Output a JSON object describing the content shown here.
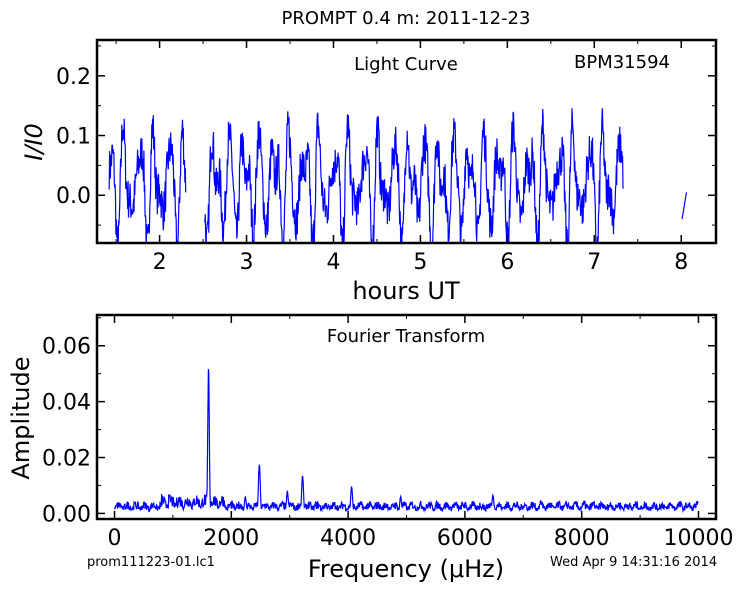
{
  "figure": {
    "title": "PROMPT 0.4 m:  2011-12-23",
    "footer_left": "prom111223-01.lc1",
    "footer_right": "Wed Apr  9 14:31:16 2014"
  },
  "chart_data": [
    {
      "type": "line",
      "title": "Light Curve",
      "annotation": "BPM31594",
      "xlabel": "hours UT",
      "ylabel": "I/I0",
      "xlim": [
        1.28,
        8.4
      ],
      "ylim": [
        -0.08,
        0.26
      ],
      "xticks": [
        2,
        3,
        4,
        5,
        6,
        7,
        8
      ],
      "yticks": [
        0.0,
        0.1,
        0.2
      ],
      "ytick_labels": [
        "0.0",
        "0.1",
        "0.2"
      ],
      "color": "#0000ff",
      "grid": false,
      "segments": [
        {
          "x_range": [
            1.42,
            2.3
          ],
          "y_range": [
            -0.08,
            0.12
          ]
        },
        {
          "x_range": [
            2.52,
            7.33
          ],
          "y_range": [
            -0.08,
            0.14
          ]
        },
        {
          "x_range": [
            8.01,
            8.06
          ],
          "y_range": [
            -0.04,
            0.005
          ]
        }
      ]
    },
    {
      "type": "line",
      "title": "Fourier Transform",
      "xlabel": "Frequency (μHz)",
      "ylabel": "Amplitude",
      "xlim": [
        -300,
        10300
      ],
      "ylim": [
        -0.002,
        0.071
      ],
      "xticks": [
        0,
        2000,
        4000,
        6000,
        8000,
        10000
      ],
      "yticks": [
        0.0,
        0.02,
        0.04,
        0.06
      ],
      "ytick_labels": [
        "0.00",
        "0.02",
        "0.04",
        "0.06"
      ],
      "color": "#0000ff",
      "grid": false,
      "peaks": [
        {
          "x": 1610,
          "y": 0.053
        },
        {
          "x": 2480,
          "y": 0.0175
        },
        {
          "x": 3220,
          "y": 0.0135
        },
        {
          "x": 2960,
          "y": 0.008
        },
        {
          "x": 4060,
          "y": 0.0095
        },
        {
          "x": 6480,
          "y": 0.0065
        },
        {
          "x": 4900,
          "y": 0.006
        },
        {
          "x": 2240,
          "y": 0.006
        },
        {
          "x": 7300,
          "y": 0.0045
        },
        {
          "x": 8200,
          "y": 0.004
        }
      ],
      "noise_level": 0.003
    }
  ]
}
